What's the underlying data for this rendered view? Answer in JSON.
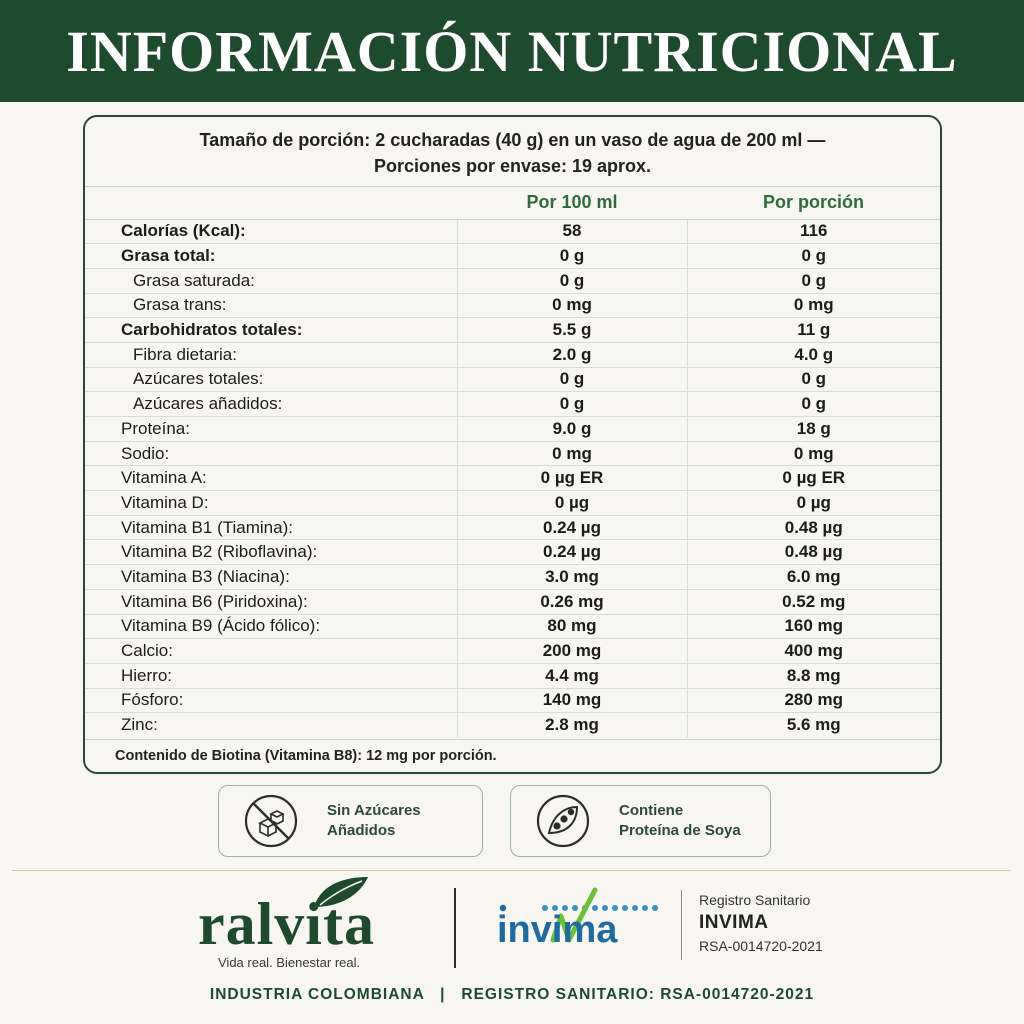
{
  "header": {
    "title": "INFORMACIÓN NUTRICIONAL"
  },
  "serving": {
    "line1": "Tamaño de porción: 2 cucharadas (40 g) en un vaso de agua de 200 ml —",
    "line2": "Porciones por envase: 19 aprox."
  },
  "table": {
    "col_per100": "Por 100 ml",
    "col_perserving": "Por porción",
    "rows": [
      {
        "name": "Calorías (Kcal):",
        "per100": "58",
        "serving": "116"
      },
      {
        "name": "Grasa total:",
        "per100": "0 g",
        "serving": "0 g"
      },
      {
        "name": "Grasa saturada:",
        "per100": "0 g",
        "serving": "0 g"
      },
      {
        "name": "Grasa trans:",
        "per100": "0 mg",
        "serving": "0 mg"
      },
      {
        "name": "Carbohidratos totales:",
        "per100": "5.5 g",
        "serving": "11 g"
      },
      {
        "name": "Fibra dietaria:",
        "per100": "2.0 g",
        "serving": "4.0 g"
      },
      {
        "name": "Azúcares totales:",
        "per100": "0 g",
        "serving": "0 g"
      },
      {
        "name": "Azúcares añadidos:",
        "per100": "0 g",
        "serving": "0 g"
      },
      {
        "name": "Proteína:",
        "per100": "9.0 g",
        "serving": "18 g"
      },
      {
        "name": "Sodio:",
        "per100": "0 mg",
        "serving": "0 mg"
      },
      {
        "name": "Vitamina A:",
        "per100": "0 µg ER",
        "serving": "0 µg ER"
      },
      {
        "name": "Vitamina D:",
        "per100": "0 µg",
        "serving": "0 µg"
      },
      {
        "name": "Vitamina B1 (Tiamina):",
        "per100": "0.24 µg",
        "serving": "0.48 µg"
      },
      {
        "name": "Vitamina B2 (Riboflavina):",
        "per100": "0.24 µg",
        "serving": "0.48 µg"
      },
      {
        "name": "Vitamina B3 (Niacina):",
        "per100": "3.0 mg",
        "serving": "6.0 mg"
      },
      {
        "name": "Vitamina B6 (Piridoxina):",
        "per100": "0.26 mg",
        "serving": "0.52 mg"
      },
      {
        "name": "Vitamina B9 (Ácido fólico):",
        "per100": "80 mg",
        "serving": "160 mg"
      },
      {
        "name": "Calcio:",
        "per100": "200 mg",
        "serving": "400 mg"
      },
      {
        "name": "Hierro:",
        "per100": "4.4 mg",
        "serving": "8.8 mg"
      },
      {
        "name": "Fósforo:",
        "per100": "140 mg",
        "serving": "280 mg"
      },
      {
        "name": "Zinc:",
        "per100": "2.8 mg",
        "serving": "5.6 mg"
      }
    ]
  },
  "footnote": "Contenido de Biotina (Vitamina B8): 12 mg por porción.",
  "badges": {
    "no_sugar": {
      "line1": "Sin Azúcares",
      "line2": "Añadidos",
      "icon": "no-sugar-cubes-icon"
    },
    "soy": {
      "line1": "Contiene",
      "line2": "Proteína de Soya",
      "icon": "soybean-pod-icon"
    }
  },
  "brand": {
    "name": "ralvita",
    "tagline": "Vida real. Bienestar real."
  },
  "invima": {
    "logo_text": "invima"
  },
  "registry": {
    "label": "Registro Sanitario",
    "authority": "INVIMA",
    "number": "RSA-0014720-2021"
  },
  "bottom": {
    "text": "INDUSTRIA COLOMBIANA   |   REGISTRO SANITARIO: RSA-0014720-2021"
  },
  "colors": {
    "primary_green": "#1e4a2e",
    "accent_green": "#2f6b3e",
    "background": "#f7f6f0",
    "invima_blue": "#1f6a9e"
  }
}
